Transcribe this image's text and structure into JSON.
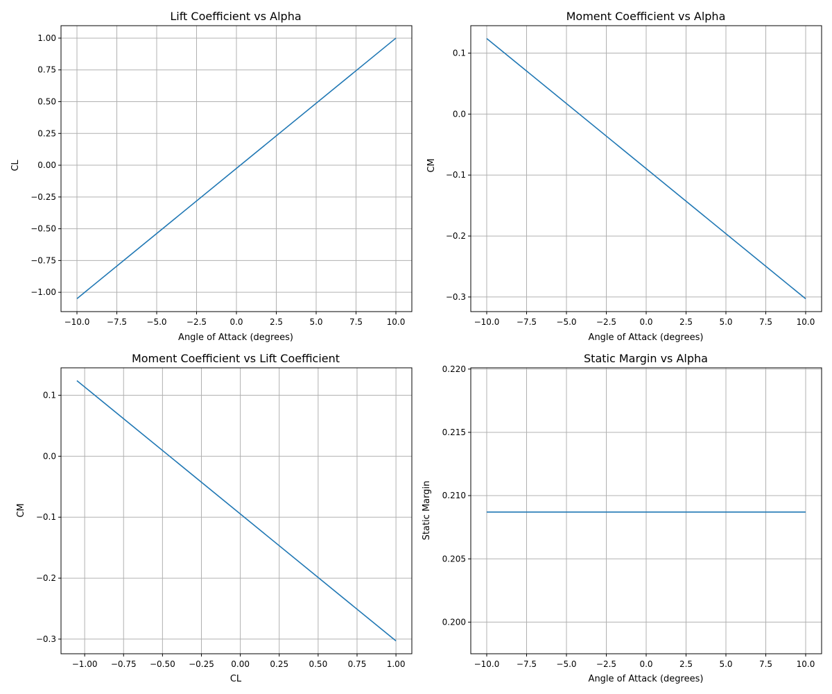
{
  "series_color": "#1f77b4",
  "grid_color": "#b0b0b0",
  "chart_data": [
    {
      "type": "line",
      "title": "Lift Coefficient vs Alpha",
      "xlabel": "Angle of Attack (degrees)",
      "ylabel": "CL",
      "xlim": [
        -11.0,
        11.0
      ],
      "ylim": [
        -1.152,
        1.098
      ],
      "xticks": [
        -10.0,
        -7.5,
        -5.0,
        -2.5,
        0.0,
        2.5,
        5.0,
        7.5,
        10.0
      ],
      "xtick_labels": [
        "−10.0",
        "−7.5",
        "−5.0",
        "−2.5",
        "0.0",
        "2.5",
        "5.0",
        "7.5",
        "10.0"
      ],
      "yticks": [
        -1.0,
        -0.75,
        -0.5,
        -0.25,
        0.0,
        0.25,
        0.5,
        0.75,
        1.0
      ],
      "ytick_labels": [
        "−1.00",
        "−0.75",
        "−0.50",
        "−0.25",
        "0.00",
        "0.25",
        "0.50",
        "0.75",
        "1.00"
      ],
      "grid": true,
      "series": [
        {
          "x": [
            -10.0,
            10.0
          ],
          "y": [
            -1.05,
            1.0
          ]
        }
      ]
    },
    {
      "type": "line",
      "title": "Moment Coefficient vs Alpha",
      "xlabel": "Angle of Attack (degrees)",
      "ylabel": "CM",
      "xlim": [
        -11.0,
        11.0
      ],
      "ylim": [
        -0.324,
        0.145
      ],
      "xticks": [
        -10.0,
        -7.5,
        -5.0,
        -2.5,
        0.0,
        2.5,
        5.0,
        7.5,
        10.0
      ],
      "xtick_labels": [
        "−10.0",
        "−7.5",
        "−5.0",
        "−2.5",
        "0.0",
        "2.5",
        "5.0",
        "7.5",
        "10.0"
      ],
      "yticks": [
        -0.3,
        -0.2,
        -0.1,
        0.0,
        0.1
      ],
      "ytick_labels": [
        "−0.3",
        "−0.2",
        "−0.1",
        "0.0",
        "0.1"
      ],
      "grid": true,
      "series": [
        {
          "x": [
            -10.0,
            10.0
          ],
          "y": [
            0.124,
            -0.303
          ]
        }
      ]
    },
    {
      "type": "line",
      "title": "Moment Coefficient vs Lift Coefficient",
      "xlabel": "CL",
      "ylabel": "CM",
      "xlim": [
        -1.152,
        1.102
      ],
      "ylim": [
        -0.324,
        0.145
      ],
      "xticks": [
        -1.0,
        -0.75,
        -0.5,
        -0.25,
        0.0,
        0.25,
        0.5,
        0.75,
        1.0
      ],
      "xtick_labels": [
        "−1.00",
        "−0.75",
        "−0.50",
        "−0.25",
        "0.00",
        "0.25",
        "0.50",
        "0.75",
        "1.00"
      ],
      "yticks": [
        -0.3,
        -0.2,
        -0.1,
        0.0,
        0.1
      ],
      "ytick_labels": [
        "−0.3",
        "−0.2",
        "−0.1",
        "0.0",
        "0.1"
      ],
      "grid": true,
      "series": [
        {
          "x": [
            -1.05,
            1.0
          ],
          "y": [
            0.124,
            -0.303
          ]
        }
      ]
    },
    {
      "type": "line",
      "title": "Static Margin vs Alpha",
      "xlabel": "Angle of Attack (degrees)",
      "ylabel": "Static Margin",
      "xlim": [
        -11.0,
        11.0
      ],
      "ylim": [
        0.1975,
        0.2201
      ],
      "xticks": [
        -10.0,
        -7.5,
        -5.0,
        -2.5,
        0.0,
        2.5,
        5.0,
        7.5,
        10.0
      ],
      "xtick_labels": [
        "−10.0",
        "−7.5",
        "−5.0",
        "−2.5",
        "0.0",
        "2.5",
        "5.0",
        "7.5",
        "10.0"
      ],
      "yticks": [
        0.2,
        0.205,
        0.21,
        0.215,
        0.22
      ],
      "ytick_labels": [
        "0.200",
        "0.205",
        "0.210",
        "0.215",
        "0.220"
      ],
      "grid": true,
      "series": [
        {
          "x": [
            -10.0,
            10.0
          ],
          "y": [
            0.2087,
            0.2087
          ]
        }
      ]
    }
  ]
}
